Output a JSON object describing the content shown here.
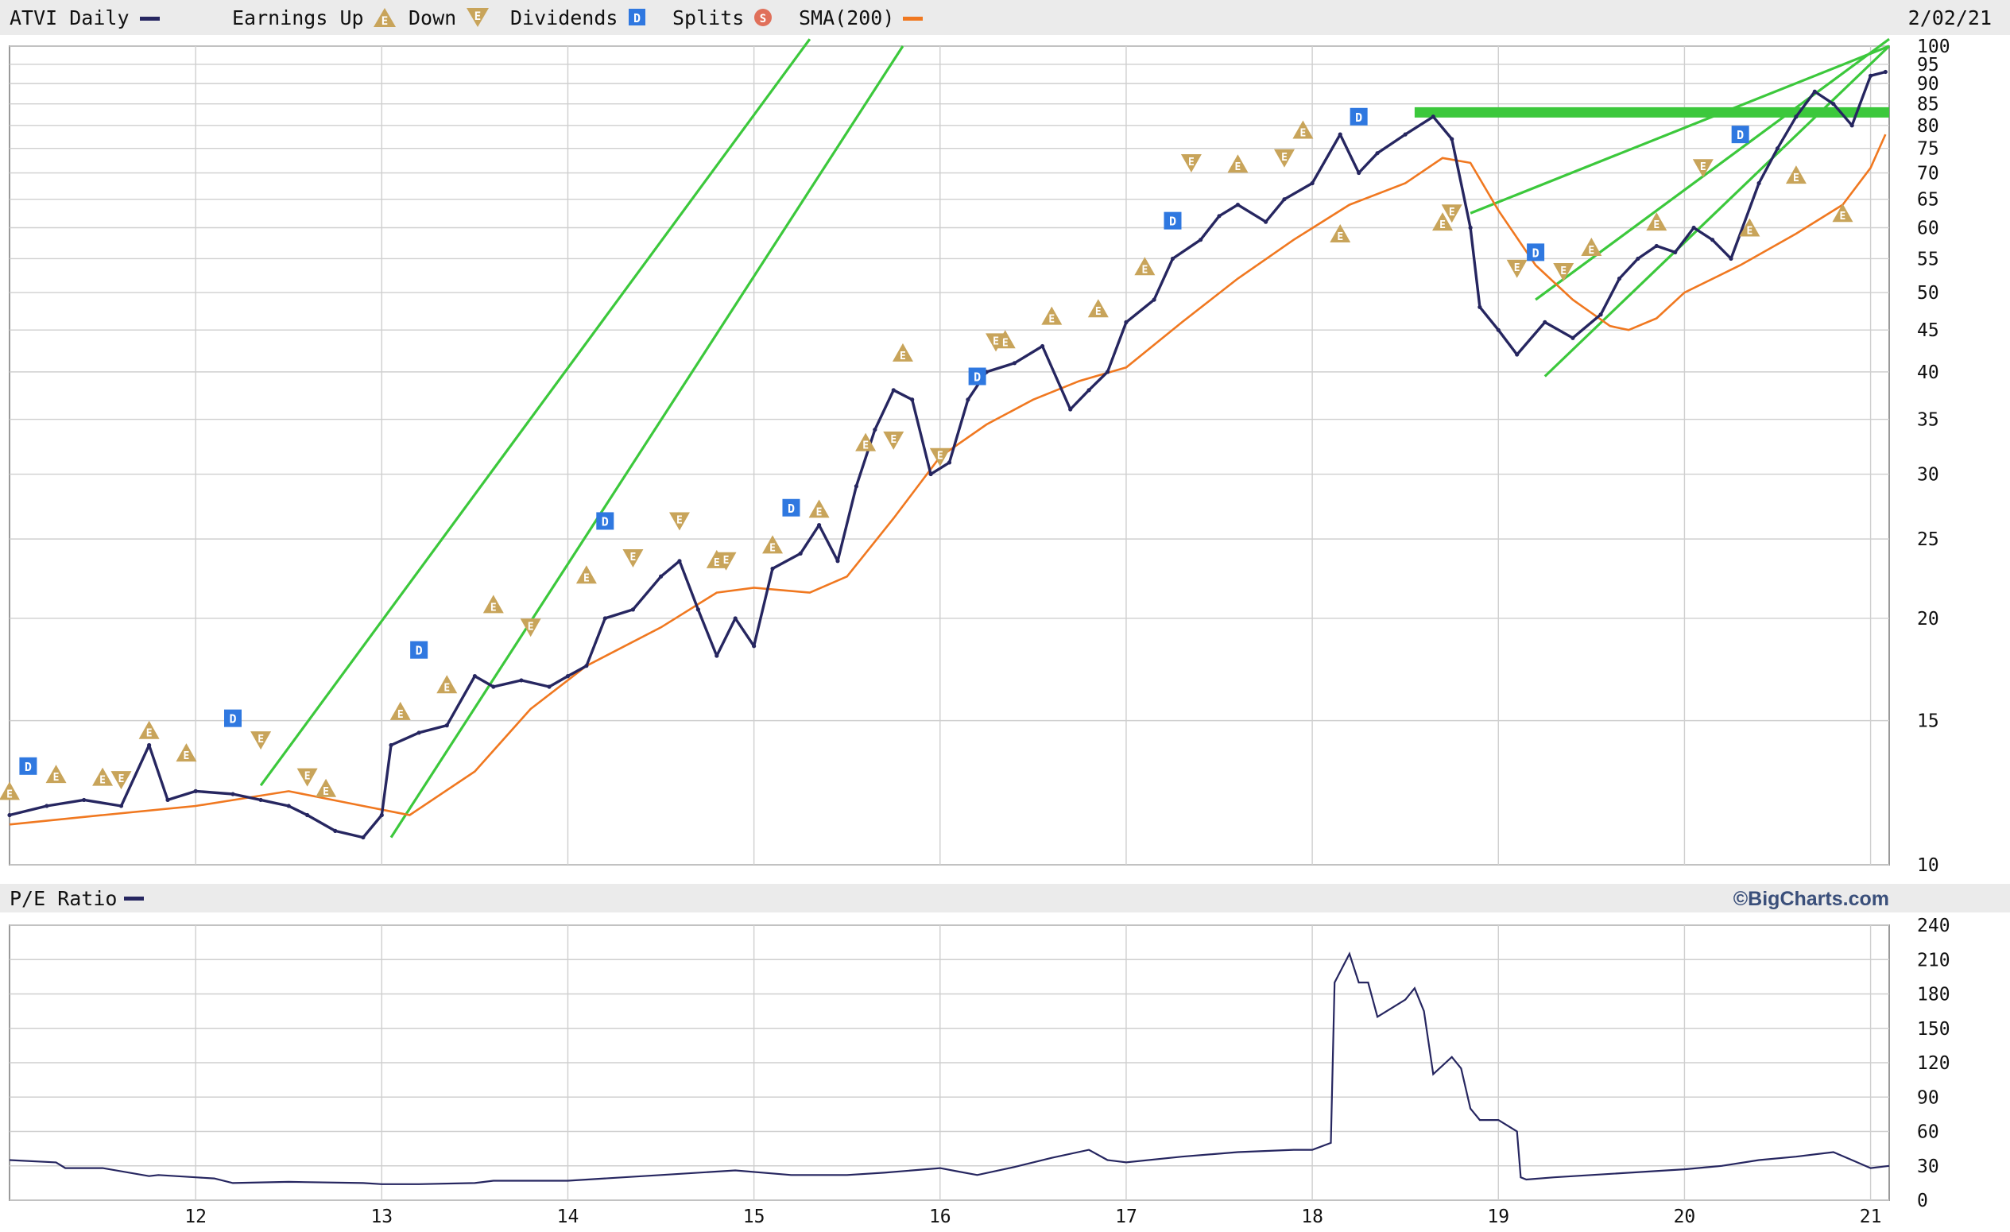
{
  "header": {
    "ticker": "ATVI Daily",
    "earnings_up": "Earnings Up",
    "earnings_down": "Down",
    "dividends": "Dividends",
    "splits": "Splits",
    "sma": "SMA(200)",
    "date": "2/02/21"
  },
  "lower_header": {
    "title": "P/E Ratio",
    "brand": "©BigCharts.com"
  },
  "colors": {
    "price": "#262660",
    "sma": "#f07820",
    "channel": "#3cc83c",
    "grid": "#cfcfcf",
    "earnings": "#c8a45a",
    "dividend": "#2f78e0",
    "split": "#e0705a",
    "header_bg": "#ebebeb"
  },
  "icons": {
    "earnings_up": "triangle-up-E",
    "earnings_down": "triangle-down-E",
    "dividend": "square-D",
    "split": "circle-S"
  },
  "chart_data": [
    {
      "type": "line",
      "title": "ATVI Daily",
      "y_scale": "log",
      "ylim": [
        10,
        100
      ],
      "xlim": [
        2011.0,
        2021.1
      ],
      "y_ticks": [
        10,
        15,
        20,
        25,
        30,
        35,
        40,
        45,
        50,
        55,
        60,
        65,
        70,
        75,
        80,
        85,
        90,
        95,
        100
      ],
      "x_ticks": [
        2012,
        2013,
        2014,
        2015,
        2016,
        2017,
        2018,
        2019,
        2020,
        2021
      ],
      "x_tick_labels": [
        "12",
        "13",
        "14",
        "15",
        "16",
        "17",
        "18",
        "19",
        "20",
        "21"
      ],
      "grid": true,
      "series": [
        {
          "name": "ATVI Daily",
          "x": [
            2011.0,
            2011.2,
            2011.4,
            2011.6,
            2011.75,
            2011.85,
            2012.0,
            2012.2,
            2012.35,
            2012.5,
            2012.6,
            2012.75,
            2012.9,
            2013.0,
            2013.05,
            2013.2,
            2013.35,
            2013.5,
            2013.6,
            2013.75,
            2013.9,
            2014.0,
            2014.1,
            2014.2,
            2014.35,
            2014.5,
            2014.6,
            2014.7,
            2014.8,
            2014.9,
            2015.0,
            2015.1,
            2015.25,
            2015.35,
            2015.45,
            2015.55,
            2015.65,
            2015.75,
            2015.85,
            2015.95,
            2016.05,
            2016.15,
            2016.25,
            2016.4,
            2016.55,
            2016.7,
            2016.8,
            2016.9,
            2017.0,
            2017.15,
            2017.25,
            2017.4,
            2017.5,
            2017.6,
            2017.75,
            2017.85,
            2018.0,
            2018.15,
            2018.25,
            2018.35,
            2018.5,
            2018.65,
            2018.75,
            2018.85,
            2018.9,
            2019.0,
            2019.1,
            2019.25,
            2019.4,
            2019.55,
            2019.65,
            2019.75,
            2019.85,
            2019.95,
            2020.05,
            2020.15,
            2020.25,
            2020.4,
            2020.5,
            2020.6,
            2020.7,
            2020.8,
            2020.9,
            2021.0,
            2021.08
          ],
          "values": [
            11.5,
            11.8,
            12.0,
            11.8,
            14.0,
            12.0,
            12.3,
            12.2,
            12.0,
            11.8,
            11.5,
            11.0,
            10.8,
            11.5,
            14.0,
            14.5,
            14.8,
            17.0,
            16.5,
            16.8,
            16.5,
            17.0,
            17.5,
            20.0,
            20.5,
            22.5,
            23.5,
            20.5,
            18.0,
            20.0,
            18.5,
            23.0,
            24.0,
            26.0,
            23.5,
            29.0,
            34.0,
            38.0,
            37.0,
            30.0,
            31.0,
            37.0,
            40.0,
            41.0,
            43.0,
            36.0,
            38.0,
            40.0,
            46.0,
            49.0,
            55.0,
            58.0,
            62.0,
            64.0,
            61.0,
            65.0,
            68.0,
            78.0,
            70.0,
            74.0,
            78.0,
            82.0,
            77.0,
            60.0,
            48.0,
            45.0,
            42.0,
            46.0,
            44.0,
            47.0,
            52.0,
            55.0,
            57.0,
            56.0,
            60.0,
            58.0,
            55.0,
            68.0,
            75.0,
            82.0,
            88.0,
            85.0,
            80.0,
            92.0,
            93.0
          ]
        },
        {
          "name": "SMA(200)",
          "x": [
            2011.0,
            2011.5,
            2012.0,
            2012.5,
            2012.9,
            2013.15,
            2013.5,
            2013.8,
            2014.1,
            2014.5,
            2014.8,
            2015.0,
            2015.3,
            2015.5,
            2015.75,
            2016.0,
            2016.25,
            2016.5,
            2016.75,
            2017.0,
            2017.3,
            2017.6,
            2017.9,
            2018.2,
            2018.5,
            2018.7,
            2018.85,
            2019.0,
            2019.2,
            2019.4,
            2019.6,
            2019.7,
            2019.85,
            2020.0,
            2020.3,
            2020.6,
            2020.85,
            2021.0,
            2021.08
          ],
          "values": [
            11.2,
            11.5,
            11.8,
            12.3,
            11.8,
            11.5,
            13.0,
            15.5,
            17.5,
            19.5,
            21.5,
            21.8,
            21.5,
            22.5,
            26.5,
            31.5,
            34.5,
            37.0,
            39.0,
            40.5,
            46.0,
            52.0,
            58.0,
            64.0,
            68.0,
            73.0,
            72.0,
            63.0,
            54.0,
            49.0,
            45.5,
            45.0,
            46.5,
            50.0,
            54.0,
            59.0,
            64.0,
            71.0,
            78.0
          ]
        }
      ],
      "earnings_up": [
        [
          2011.0,
          12.3
        ],
        [
          2011.25,
          12.9
        ],
        [
          2011.5,
          12.8
        ],
        [
          2011.75,
          14.6
        ],
        [
          2011.95,
          13.7
        ],
        [
          2012.7,
          12.4
        ],
        [
          2013.1,
          15.4
        ],
        [
          2013.35,
          16.6
        ],
        [
          2013.6,
          20.8
        ],
        [
          2014.1,
          22.6
        ],
        [
          2014.8,
          23.6
        ],
        [
          2015.1,
          24.6
        ],
        [
          2015.35,
          27.2
        ],
        [
          2015.6,
          32.8
        ],
        [
          2015.8,
          42.2
        ],
        [
          2016.35,
          43.8
        ],
        [
          2016.6,
          46.8
        ],
        [
          2016.85,
          47.8
        ],
        [
          2017.1,
          53.8
        ],
        [
          2017.6,
          71.8
        ],
        [
          2017.95,
          79.0
        ],
        [
          2018.15,
          59.0
        ],
        [
          2018.7,
          61.0
        ],
        [
          2019.5,
          56.8
        ],
        [
          2019.85,
          61.0
        ],
        [
          2020.35,
          60.0
        ],
        [
          2020.6,
          69.6
        ],
        [
          2020.85,
          62.5
        ]
      ],
      "earnings_down": [
        [
          2011.6,
          12.7
        ],
        [
          2012.35,
          14.2
        ],
        [
          2012.6,
          12.8
        ],
        [
          2013.8,
          19.5
        ],
        [
          2014.35,
          23.7
        ],
        [
          2014.6,
          26.3
        ],
        [
          2014.85,
          23.5
        ],
        [
          2015.75,
          33.0
        ],
        [
          2016.0,
          31.5
        ],
        [
          2016.3,
          43.5
        ],
        [
          2017.35,
          72.0
        ],
        [
          2017.85,
          73.0
        ],
        [
          2018.75,
          62.5
        ],
        [
          2019.1,
          53.5
        ],
        [
          2019.35,
          53.0
        ],
        [
          2020.1,
          71.0
        ]
      ],
      "dividends": [
        [
          2011.1,
          13.2
        ],
        [
          2012.2,
          15.1
        ],
        [
          2013.2,
          18.3
        ],
        [
          2014.2,
          26.3
        ],
        [
          2015.2,
          27.3
        ],
        [
          2016.2,
          39.5
        ],
        [
          2017.25,
          61.2
        ],
        [
          2018.25,
          82.0
        ],
        [
          2019.2,
          56.0
        ],
        [
          2020.3,
          78.0
        ]
      ],
      "channels": [
        {
          "x": [
            2012.35,
            2015.3
          ],
          "values": [
            12.5,
            102
          ]
        },
        {
          "x": [
            2013.05,
            2015.8
          ],
          "values": [
            10.8,
            100
          ]
        },
        {
          "x": [
            2018.85,
            2021.1
          ],
          "values": [
            62.5,
            100
          ]
        },
        {
          "x": [
            2019.2,
            2021.1
          ],
          "values": [
            49.0,
            102
          ]
        },
        {
          "x": [
            2019.25,
            2021.1
          ],
          "values": [
            39.5,
            100
          ]
        }
      ],
      "resistance": {
        "x": [
          2018.55,
          2021.1
        ],
        "value": 83
      }
    },
    {
      "type": "line",
      "title": "P/E Ratio",
      "ylim": [
        0,
        240
      ],
      "y_ticks": [
        0,
        30,
        60,
        90,
        120,
        150,
        180,
        210,
        240
      ],
      "xlim": [
        2011.0,
        2021.1
      ],
      "x_ticks": [
        2012,
        2013,
        2014,
        2015,
        2016,
        2017,
        2018,
        2019,
        2020,
        2021
      ],
      "x_tick_labels": [
        "12",
        "13",
        "14",
        "15",
        "16",
        "17",
        "18",
        "19",
        "20",
        "21"
      ],
      "grid": true,
      "series": [
        {
          "name": "P/E Ratio",
          "x": [
            2011.0,
            2011.25,
            2011.3,
            2011.5,
            2011.75,
            2011.8,
            2012.0,
            2012.1,
            2012.2,
            2012.5,
            2012.9,
            2013.0,
            2013.2,
            2013.5,
            2013.6,
            2014.0,
            2014.5,
            2014.9,
            2015.2,
            2015.5,
            2015.7,
            2016.0,
            2016.1,
            2016.2,
            2016.4,
            2016.6,
            2016.8,
            2016.9,
            2017.0,
            2017.3,
            2017.6,
            2017.9,
            2018.0,
            2018.1,
            2018.12,
            2018.2,
            2018.25,
            2018.3,
            2018.35,
            2018.5,
            2018.55,
            2018.6,
            2018.65,
            2018.75,
            2018.8,
            2018.85,
            2018.9,
            2019.0,
            2019.1,
            2019.12,
            2019.15,
            2019.3,
            2019.5,
            2019.8,
            2020.0,
            2020.2,
            2020.4,
            2020.6,
            2020.8,
            2020.9,
            2021.0,
            2021.1
          ],
          "values": [
            35,
            33,
            28,
            28,
            21,
            22,
            20,
            19,
            15,
            16,
            15,
            14,
            14,
            15,
            17,
            17,
            22,
            26,
            22,
            22,
            24,
            28,
            25,
            22,
            29,
            37,
            44,
            35,
            33,
            38,
            42,
            44,
            44,
            50,
            190,
            215,
            190,
            190,
            160,
            175,
            185,
            165,
            110,
            125,
            115,
            80,
            70,
            70,
            60,
            20,
            18,
            20,
            22,
            25,
            27,
            30,
            35,
            38,
            42,
            35,
            28,
            30
          ]
        }
      ]
    }
  ]
}
